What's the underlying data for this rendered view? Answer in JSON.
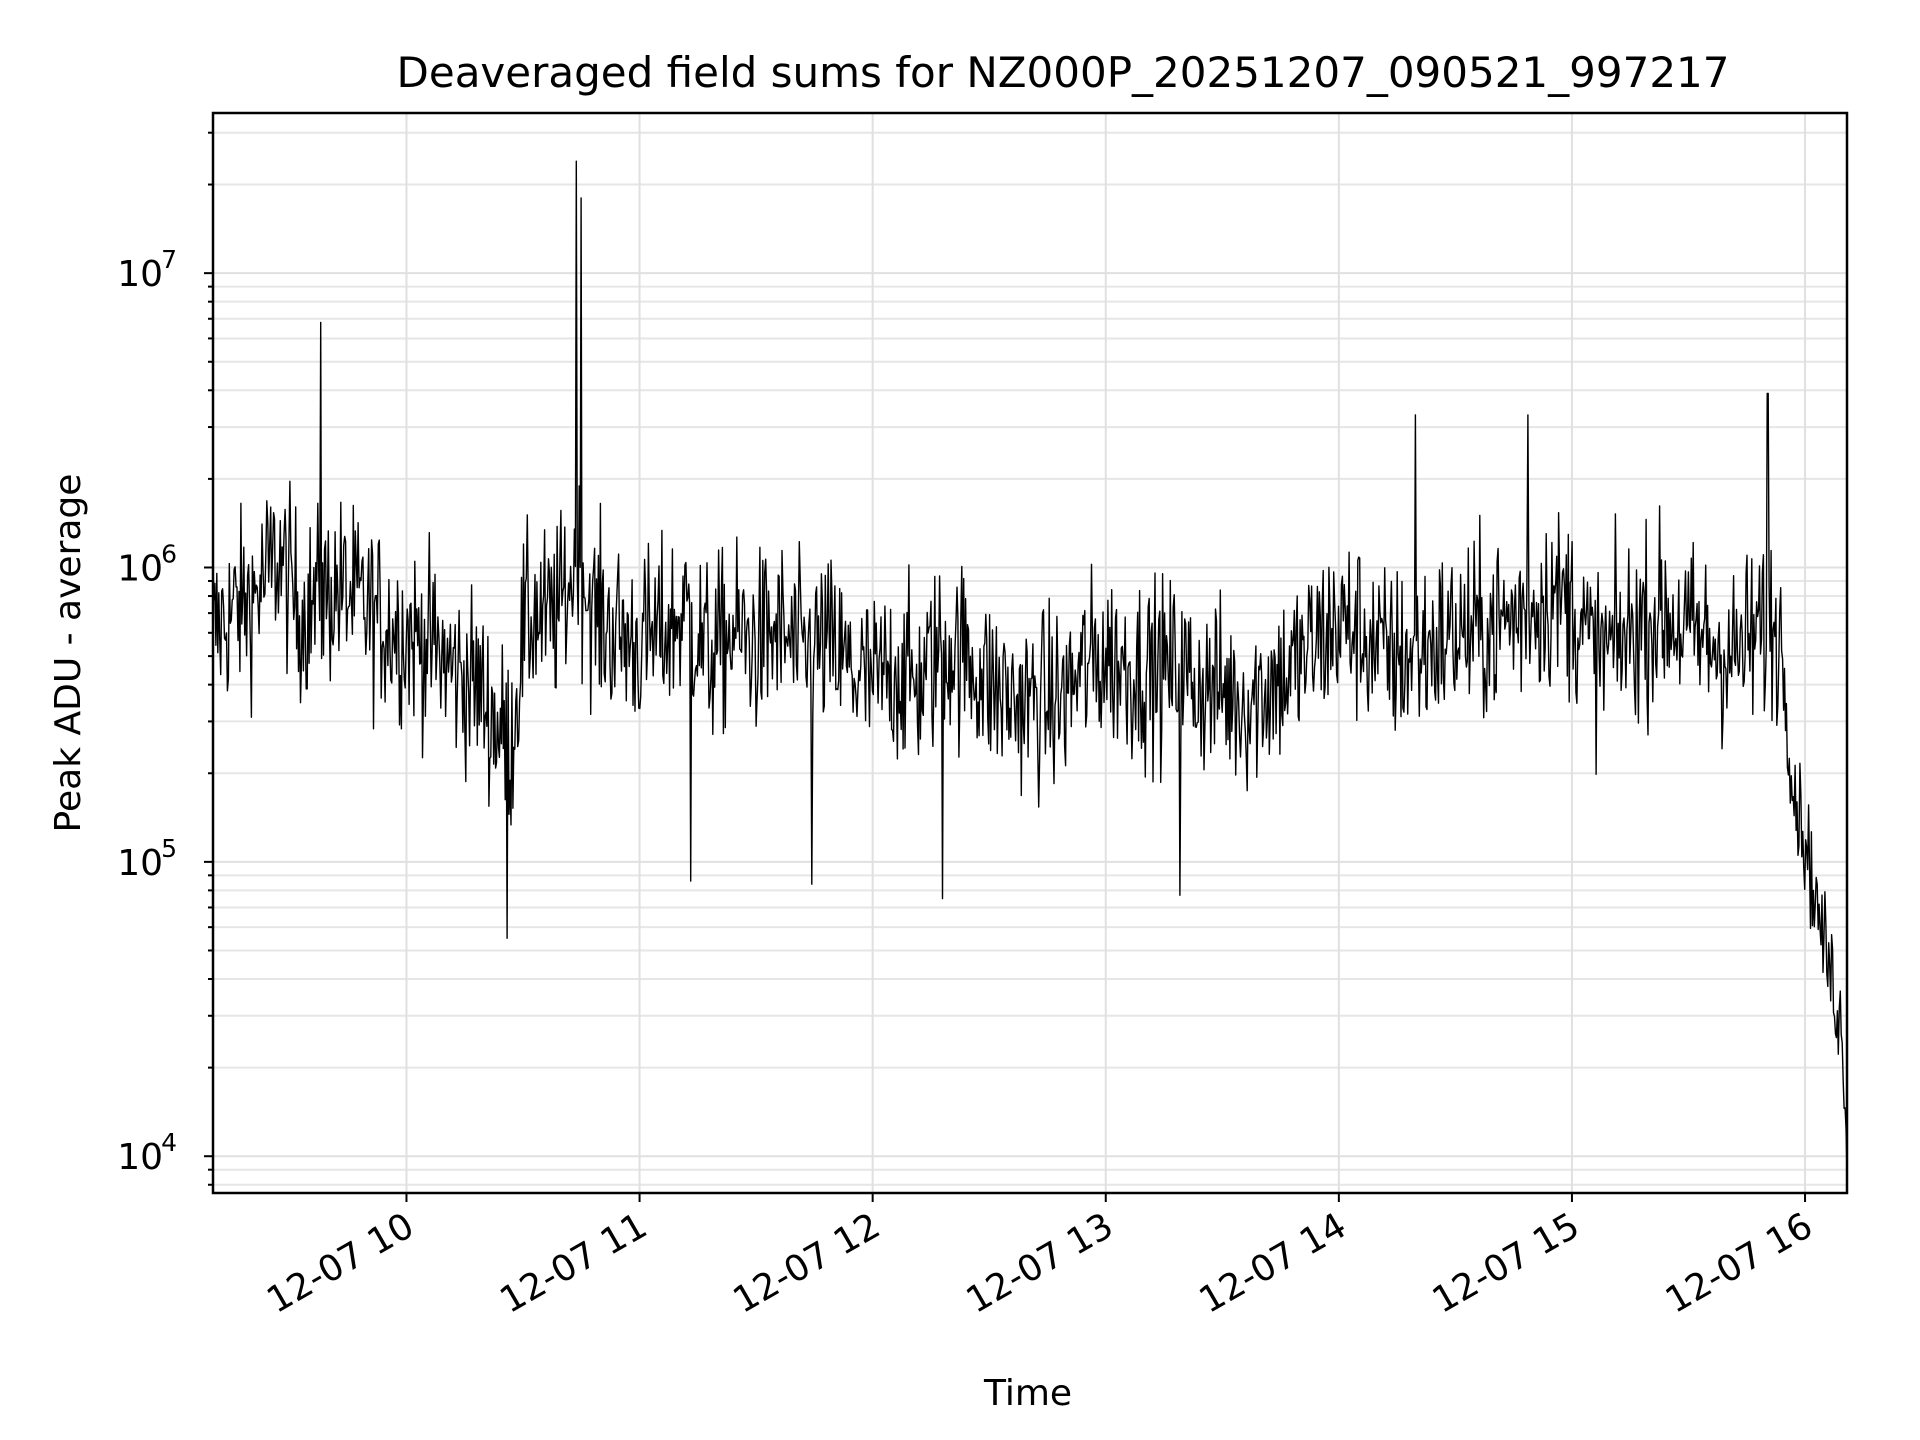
{
  "chart_data": {
    "type": "line",
    "title": "Deaveraged field sums for NZ000P_20251207_090521_997217",
    "xlabel": "Time",
    "ylabel": "Peak ADU - average",
    "yscale": "log",
    "ylim": [
      7500,
      35000000
    ],
    "xlim_hours": [
      9.17,
      16.18
    ],
    "x_ticks": [
      {
        "label": "12-07 10",
        "hour": 10
      },
      {
        "label": "12-07 11",
        "hour": 11
      },
      {
        "label": "12-07 12",
        "hour": 12
      },
      {
        "label": "12-07 13",
        "hour": 13
      },
      {
        "label": "12-07 14",
        "hour": 14
      },
      {
        "label": "12-07 15",
        "hour": 15
      },
      {
        "label": "12-07 16",
        "hour": 16
      }
    ],
    "y_ticks": [
      {
        "base": "10",
        "exp": "4",
        "value": 10000
      },
      {
        "base": "10",
        "exp": "5",
        "value": 100000
      },
      {
        "base": "10",
        "exp": "6",
        "value": 1000000
      },
      {
        "base": "10",
        "exp": "7",
        "value": 10000000
      }
    ],
    "grid": true,
    "series": [
      {
        "name": "field sums",
        "color": "#000000",
        "x_hours": [
          9.17,
          9.25,
          9.35,
          9.45,
          9.55,
          9.65,
          9.72,
          9.8,
          9.9,
          10.0,
          10.1,
          10.2,
          10.3,
          10.4,
          10.45,
          10.5,
          10.55,
          10.6,
          10.65,
          10.7,
          10.75,
          10.8,
          10.9,
          11.0,
          11.1,
          11.2,
          11.3,
          11.4,
          11.5,
          11.6,
          11.7,
          11.8,
          11.9,
          12.0,
          12.1,
          12.2,
          12.3,
          12.4,
          12.5,
          12.6,
          12.7,
          12.8,
          12.9,
          13.0,
          13.1,
          13.2,
          13.3,
          13.4,
          13.5,
          13.6,
          13.7,
          13.8,
          13.9,
          14.0,
          14.1,
          14.2,
          14.3,
          14.4,
          14.5,
          14.6,
          14.7,
          14.8,
          14.9,
          15.0,
          15.1,
          15.2,
          15.3,
          15.4,
          15.5,
          15.6,
          15.7,
          15.8,
          15.86,
          15.9,
          15.95,
          16.0,
          16.05,
          16.1,
          16.15,
          16.18
        ],
        "values": [
          600000,
          700000,
          800000,
          1100000,
          700000,
          800000,
          850000,
          750000,
          650000,
          600000,
          550000,
          450000,
          400000,
          280000,
          250000,
          600000,
          700000,
          650000,
          700000,
          900000,
          1000000,
          700000,
          600000,
          550000,
          600000,
          700000,
          500000,
          600000,
          550000,
          600000,
          500000,
          550000,
          450000,
          400000,
          450000,
          400000,
          550000,
          500000,
          400000,
          350000,
          350000,
          350000,
          450000,
          500000,
          450000,
          450000,
          450000,
          400000,
          380000,
          350000,
          400000,
          450000,
          550000,
          650000,
          600000,
          500000,
          500000,
          550000,
          600000,
          600000,
          650000,
          700000,
          800000,
          750000,
          500000,
          550000,
          650000,
          700000,
          600000,
          550000,
          500000,
          600000,
          650000,
          550000,
          180000,
          120000,
          70000,
          45000,
          30000,
          13000
        ],
        "spikes": [
          {
            "hour": 9.63,
            "value": 6800000
          },
          {
            "hour": 10.73,
            "value": 24000000
          },
          {
            "hour": 10.75,
            "value": 18000000
          },
          {
            "hour": 10.43,
            "value": 55000
          },
          {
            "hour": 15.84,
            "value": 3900000
          },
          {
            "hour": 14.33,
            "value": 3300000
          },
          {
            "hour": 14.81,
            "value": 3300000
          },
          {
            "hour": 12.3,
            "value": 75000
          },
          {
            "hour": 13.32,
            "value": 77000
          },
          {
            "hour": 11.74,
            "value": 84000
          },
          {
            "hour": 11.22,
            "value": 86000
          }
        ]
      }
    ]
  }
}
